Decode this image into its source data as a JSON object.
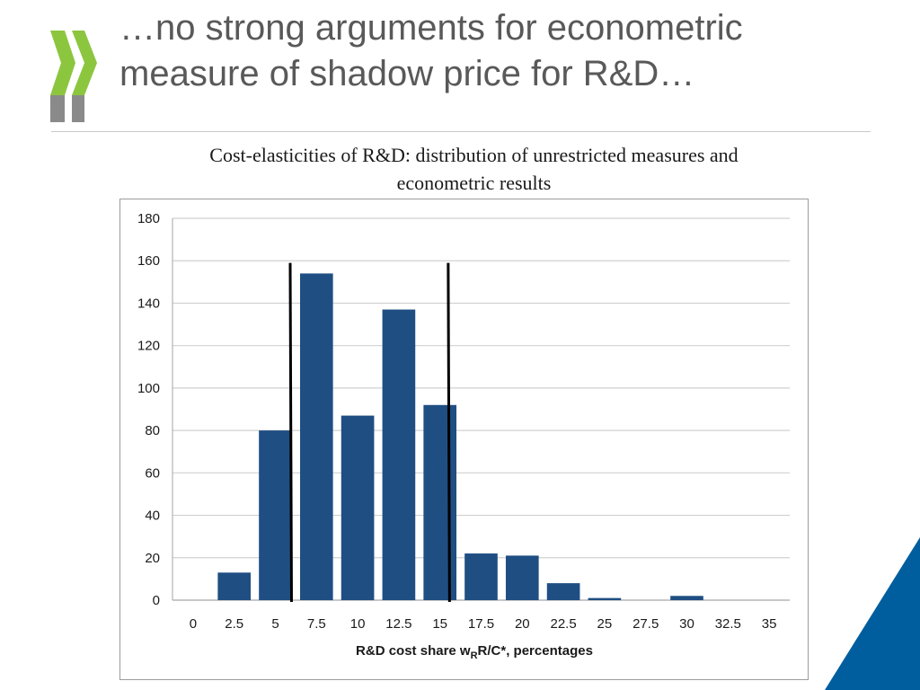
{
  "slide": {
    "title_lines": [
      "…no strong arguments for econometric",
      "measure of shadow price for R&D…"
    ],
    "caption_lines": [
      "Cost-elasticities of R&D: distribution of unrestricted measures and",
      "econometric results"
    ]
  },
  "colors": {
    "title": "#595959",
    "bar": "#1f4e82",
    "logo_green": "#8cc63f",
    "logo_gray": "#8a8a8a",
    "corner_blue": "#005e9e",
    "grid": "#d0d0d0",
    "reference_line": "#000000"
  },
  "logo_icon": "oecd-chevrons",
  "chart_data": {
    "type": "bar",
    "x_ticks": [
      "0",
      "2.5",
      "5",
      "7.5",
      "10",
      "12.5",
      "15",
      "17.5",
      "20",
      "22.5",
      "25",
      "27.5",
      "30",
      "32.5",
      "35"
    ],
    "bins": [
      {
        "x": 2.5,
        "value": 13
      },
      {
        "x": 5,
        "value": 80
      },
      {
        "x": 7.5,
        "value": 154
      },
      {
        "x": 10,
        "value": 87
      },
      {
        "x": 12.5,
        "value": 137
      },
      {
        "x": 15,
        "value": 92
      },
      {
        "x": 17.5,
        "value": 22
      },
      {
        "x": 20,
        "value": 21
      },
      {
        "x": 22.5,
        "value": 8
      },
      {
        "x": 25,
        "value": 1
      },
      {
        "x": 30,
        "value": 2
      }
    ],
    "reference_lines": [
      {
        "x": 5.9,
        "top": 159
      },
      {
        "x": 15.5,
        "top": 159
      }
    ],
    "ylim": [
      0,
      180
    ],
    "y_ticks": [
      "0",
      "20",
      "40",
      "60",
      "80",
      "100",
      "120",
      "140",
      "160",
      "180"
    ],
    "xlabel_parts": {
      "main": "R&D cost share w",
      "subscript": "R",
      "rest": "R/C*, percentages"
    },
    "ylabel": "",
    "grid": true
  }
}
